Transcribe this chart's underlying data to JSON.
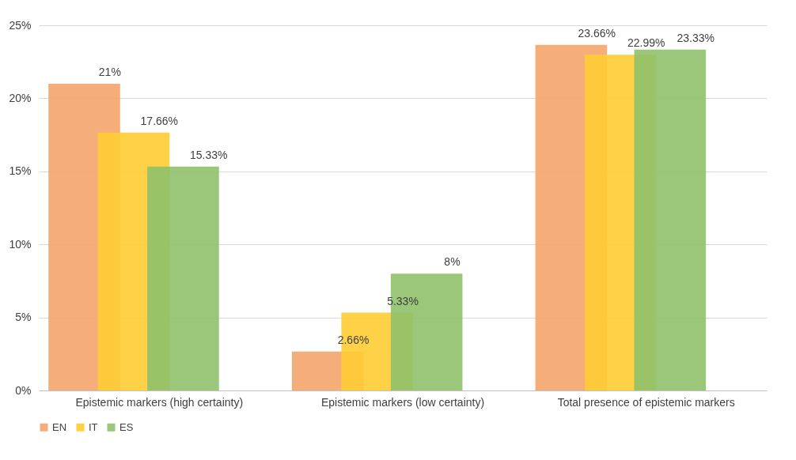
{
  "chart_data": {
    "type": "bar",
    "categories": [
      "Epistemic markers (high certainty)",
      "Epistemic markers (low certainty)",
      "Total presence of epistemic markers"
    ],
    "series": [
      {
        "name": "EN",
        "color": "#f4a46c",
        "values": [
          21,
          2.66,
          23.66
        ],
        "value_labels": [
          "21%",
          "2.66%",
          "23.66%"
        ]
      },
      {
        "name": "IT",
        "color": "#ffcc33",
        "values": [
          17.66,
          5.33,
          22.99
        ],
        "value_labels": [
          "17.66%",
          "5.33%",
          "22.99%"
        ]
      },
      {
        "name": "ES",
        "color": "#8fc16a",
        "values": [
          15.33,
          8,
          23.33
        ],
        "value_labels": [
          "15.33%",
          "8%",
          "23.33%"
        ]
      }
    ],
    "ylim": [
      0,
      25
    ],
    "yticks": [
      {
        "value": 0,
        "label": "0%"
      },
      {
        "value": 5,
        "label": "5%"
      },
      {
        "value": 10,
        "label": "10%"
      },
      {
        "value": 15,
        "label": "15%"
      },
      {
        "value": 20,
        "label": "20%"
      },
      {
        "value": 25,
        "label": "25%"
      }
    ],
    "grid": "y",
    "legend": "bottom"
  }
}
